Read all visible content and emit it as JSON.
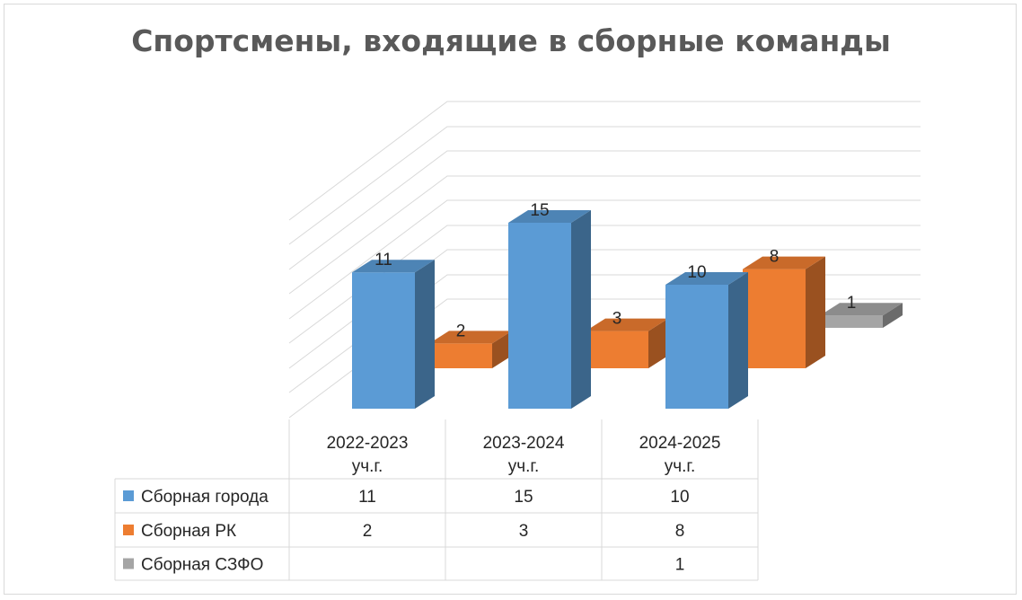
{
  "chart_data": {
    "type": "bar",
    "title": "Спортсмены, входящие в сборные команды",
    "categories": [
      [
        "2022-2023",
        "уч.г."
      ],
      [
        "2023-2024",
        "уч.г."
      ],
      [
        "2024-2025",
        "уч.г."
      ]
    ],
    "series": [
      {
        "name": "Сборная города",
        "values": [
          11,
          15,
          10
        ],
        "color": "#5b9bd5"
      },
      {
        "name": "Сборная РК",
        "values": [
          2,
          3,
          8
        ],
        "color": "#ed7d31"
      },
      {
        "name": "Сборная СЗФО",
        "values": [
          null,
          null,
          1
        ],
        "color": "#a5a5a5"
      }
    ],
    "ylim": [
      0,
      15
    ],
    "grid": true,
    "legend": "data-table",
    "data_table": true
  }
}
